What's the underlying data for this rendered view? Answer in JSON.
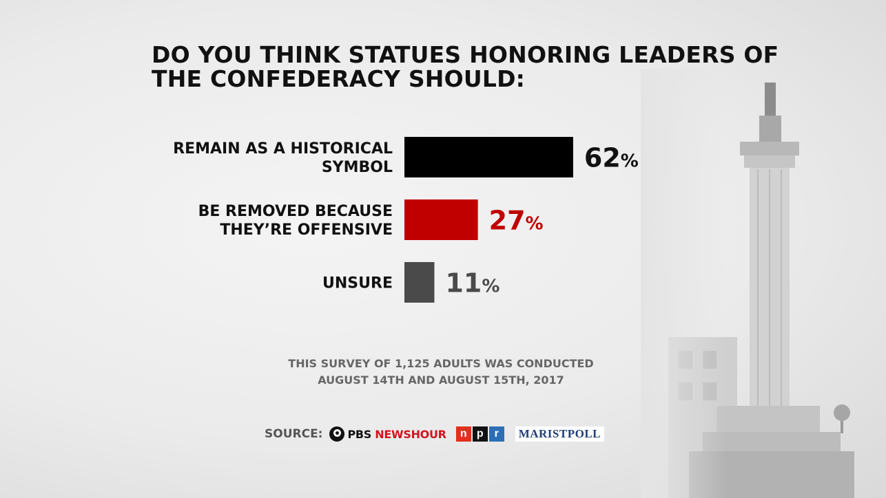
{
  "title": "DO YOU THINK STATUES HONORING LEADERS OF THE CONFEDERACY SHOULD:",
  "chart_data": {
    "type": "bar",
    "orientation": "horizontal",
    "title": "DO YOU THINK STATUES HONORING LEADERS OF THE CONFEDERACY SHOULD:",
    "categories": [
      "REMAIN AS A HISTORICAL SYMBOL",
      "BE REMOVED BECAUSE THEY’RE OFFENSIVE",
      "UNSURE"
    ],
    "category_lines": [
      [
        "REMAIN AS A HISTORICAL",
        "SYMBOL"
      ],
      [
        "BE REMOVED BECAUSE",
        "THEY’RE OFFENSIVE"
      ],
      [
        "UNSURE"
      ]
    ],
    "values": [
      62,
      27,
      11
    ],
    "unit": "%",
    "colors": [
      "#000000",
      "#c00000",
      "#4a4a4a"
    ],
    "label_colors": [
      "#111111",
      "#c00000",
      "#4a4a4a"
    ],
    "xlim": [
      0,
      100
    ],
    "grid": false
  },
  "note": {
    "line1": "THIS SURVEY OF 1,125 ADULTS WAS CONDUCTED",
    "line2": "AUGUST 14TH AND AUGUST 15TH, 2017"
  },
  "source": {
    "label": "SOURCE:",
    "pbs_part1": "PBS",
    "pbs_part2": " NEWSHOUR",
    "npr_letters": [
      "n",
      "p",
      "r"
    ],
    "marist": "MARISTPOLL"
  }
}
